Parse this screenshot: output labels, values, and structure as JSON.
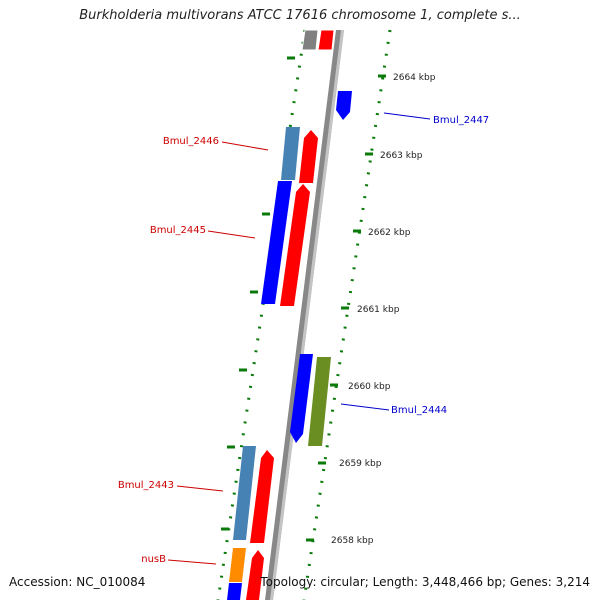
{
  "header": {
    "title": "Burkholderia multivorans ATCC 17616 chromosome 1, complete s..."
  },
  "footer": {
    "accession": "Accession: NC_010084",
    "topology": "Topology: circular; Length: 3,448,466 bp; Genes: 3,214"
  },
  "scale": {
    "ticks": [
      "2664 kbp",
      "2663 kbp",
      "2662 kbp",
      "2661 kbp",
      "2660 kbp",
      "2659 kbp",
      "2658 kbp"
    ]
  },
  "genes": [
    {
      "label": "Bmul_2447",
      "color": "#0000cc"
    },
    {
      "label": "Bmul_2446",
      "color": "#cc0000"
    },
    {
      "label": "Bmul_2445",
      "color": "#cc0000"
    },
    {
      "label": "Bmul_2444",
      "color": "#0000cc"
    },
    {
      "label": "Bmul_2443",
      "color": "#cc0000"
    },
    {
      "label": "nusB",
      "color": "#cc0000"
    }
  ],
  "colors": {
    "cds_blue": "#0000ff",
    "cds_steel": "#4682b4",
    "cds_red": "#ff0000",
    "cds_olive": "#6b8e23",
    "cds_orange": "#ff8c00",
    "cds_gray": "#808080",
    "tick_green": "#0a7a0a",
    "backbone": "#8a8a8a"
  }
}
